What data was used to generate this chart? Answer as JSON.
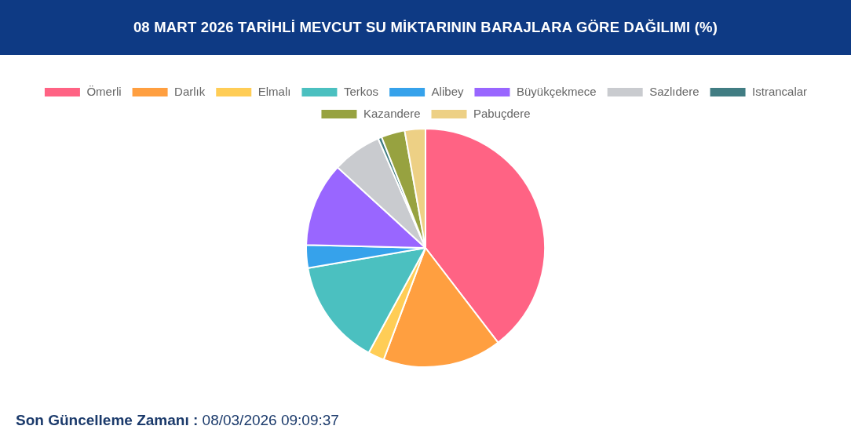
{
  "chart_data": {
    "type": "pie",
    "title": "08 MART 2026 TARİHLİ MEVCUT SU MİKTARININ BARAJLARA GÖRE DAĞILIMI (%)",
    "categories": [
      "Ömerli",
      "Darlık",
      "Elmalı",
      "Terkos",
      "Alibey",
      "Büyükçekmece",
      "Sazlıdere",
      "Istrancalar",
      "Kazandere",
      "Pabuçdere"
    ],
    "values": [
      39.6,
      16.1,
      2.2,
      14.4,
      3.1,
      11.4,
      6.7,
      0.5,
      3.2,
      2.8
    ],
    "colors": [
      "#ff6384",
      "#ff9f40",
      "#ffcd56",
      "#4bc0c0",
      "#36a2eb",
      "#9966ff",
      "#c9cbcf",
      "#417d83",
      "#97a240",
      "#edd085"
    ],
    "legend": "top",
    "annotations": [
      "Son Güncelleme Zamanı :",
      "08/03/2026 09:09:37"
    ]
  }
}
